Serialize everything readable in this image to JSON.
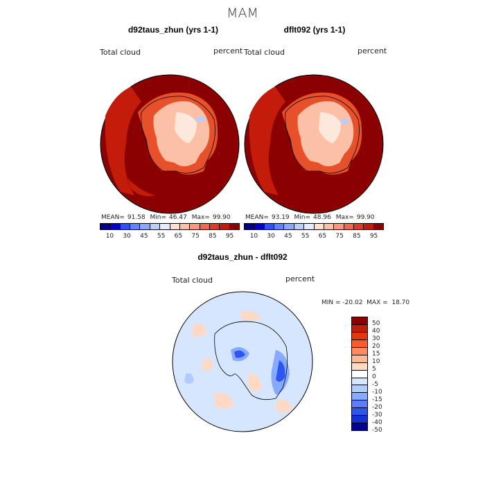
{
  "season": "MAM",
  "panel1": {
    "title": "d92taus_zhun (yrs 1-1)",
    "var_label": "Total cloud",
    "unit": "percent",
    "mean_label": "MEAN=",
    "mean": "91.58",
    "min_label": "Min=",
    "min": "46.47",
    "max_label": "Max=",
    "max": "99.90"
  },
  "panel2": {
    "title": "dflt092 (yrs 1-1)",
    "var_label": "Total cloud",
    "unit": "percent",
    "mean_label": "MEAN=",
    "mean": "93.19",
    "min_label": "Min=",
    "min": "48.96",
    "max_label": "Max=",
    "max": "99.90"
  },
  "panel3": {
    "title": "d92taus_zhun - dflt092",
    "var_label": "Total cloud",
    "unit": "percent",
    "minmax_text": "MIN = -20.02  MAX =  18.70"
  },
  "abs_colorbar": {
    "colors": [
      "#00008b",
      "#0000cd",
      "#2a52ff",
      "#5c85ff",
      "#8aa8ff",
      "#b9cdff",
      "#e4ecff",
      "#fde0d2",
      "#fcc0a6",
      "#f8997a",
      "#f06a4a",
      "#e13a1f",
      "#c41c0a",
      "#8b0000"
    ],
    "tick_labels": [
      "10",
      "30",
      "45",
      "55",
      "65",
      "75",
      "85",
      "95"
    ]
  },
  "diff_colorbar": {
    "colors": [
      "#8b0000",
      "#c41c0a",
      "#e6350f",
      "#ff5a2a",
      "#ff8a5e",
      "#fdb896",
      "#fdd9c6",
      "#ffffff",
      "#d6e6ff",
      "#b0ccff",
      "#86aaff",
      "#5880ff",
      "#2f55f0",
      "#1431d6",
      "#000096"
    ],
    "tick_labels": [
      "50",
      "40",
      "30",
      "20",
      "15",
      "10",
      "5",
      "0",
      "-5",
      "-10",
      "-15",
      "-20",
      "-30",
      "-40",
      "-50"
    ]
  },
  "map_colors": {
    "abs_ocean": "#8b0000",
    "abs_mid": "#c41c0a",
    "abs_orange": "#e6502a",
    "abs_light": "#fcc0a6",
    "abs_pale": "#fde8de",
    "abs_blue": "#b9cdff",
    "diff_bg": "#d6e6ff",
    "diff_pink": "#fdd9c6",
    "diff_blue": "#86aaff",
    "diff_dblue": "#2f55f0"
  }
}
